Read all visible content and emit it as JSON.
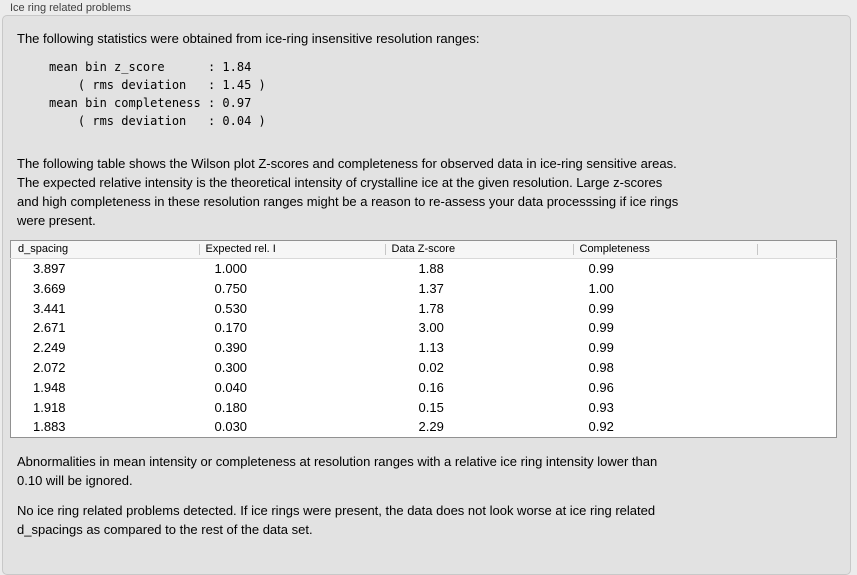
{
  "panel": {
    "title": "Ice ring related problems"
  },
  "intro": "The following statistics were obtained from ice-ring insensitive resolution ranges:",
  "stats_block": "mean bin z_score      : 1.84\n    ( rms deviation   : 1.45 )\nmean bin completeness : 0.97\n    ( rms deviation   : 0.04 )",
  "description": "The following table shows the Wilson plot Z-scores and completeness for observed data in ice-ring sensitive areas.\nThe expected relative intensity is the theoretical intensity of crystalline ice at the given resolution. Large z-scores\nand high completeness in these resolution ranges might be a reason to re-assess your data processsing if ice rings\nwere present.",
  "table": {
    "columns": [
      "d_spacing",
      "Expected rel. I",
      "Data Z-score",
      "Completeness",
      ""
    ],
    "rows": [
      [
        "3.897",
        "1.000",
        "1.88",
        "0.99"
      ],
      [
        "3.669",
        "0.750",
        "1.37",
        "1.00"
      ],
      [
        "3.441",
        "0.530",
        "1.78",
        "0.99"
      ],
      [
        "2.671",
        "0.170",
        "3.00",
        "0.99"
      ],
      [
        "2.249",
        "0.390",
        "1.13",
        "0.99"
      ],
      [
        "2.072",
        "0.300",
        "0.02",
        "0.98"
      ],
      [
        "1.948",
        "0.040",
        "0.16",
        "0.96"
      ],
      [
        "1.918",
        "0.180",
        "0.15",
        "0.93"
      ],
      [
        "1.883",
        "0.030",
        "2.29",
        "0.92"
      ]
    ]
  },
  "notes": [
    "Abnormalities in mean intensity or completeness at resolution ranges with a relative ice ring intensity lower than\n0.10 will be ignored.",
    "No ice ring related problems detected. If ice rings were present, the data does not look worse at ice ring related\nd_spacings as compared to the rest of the data set."
  ],
  "colors": {
    "page_bg": "#ececec",
    "panel_bg": "#e2e2e2",
    "panel_border": "#c8c8c8",
    "table_border": "#919191",
    "table_header_bg": "#f6f6f6",
    "text": "#000000",
    "title_text": "#3f3f3f"
  }
}
